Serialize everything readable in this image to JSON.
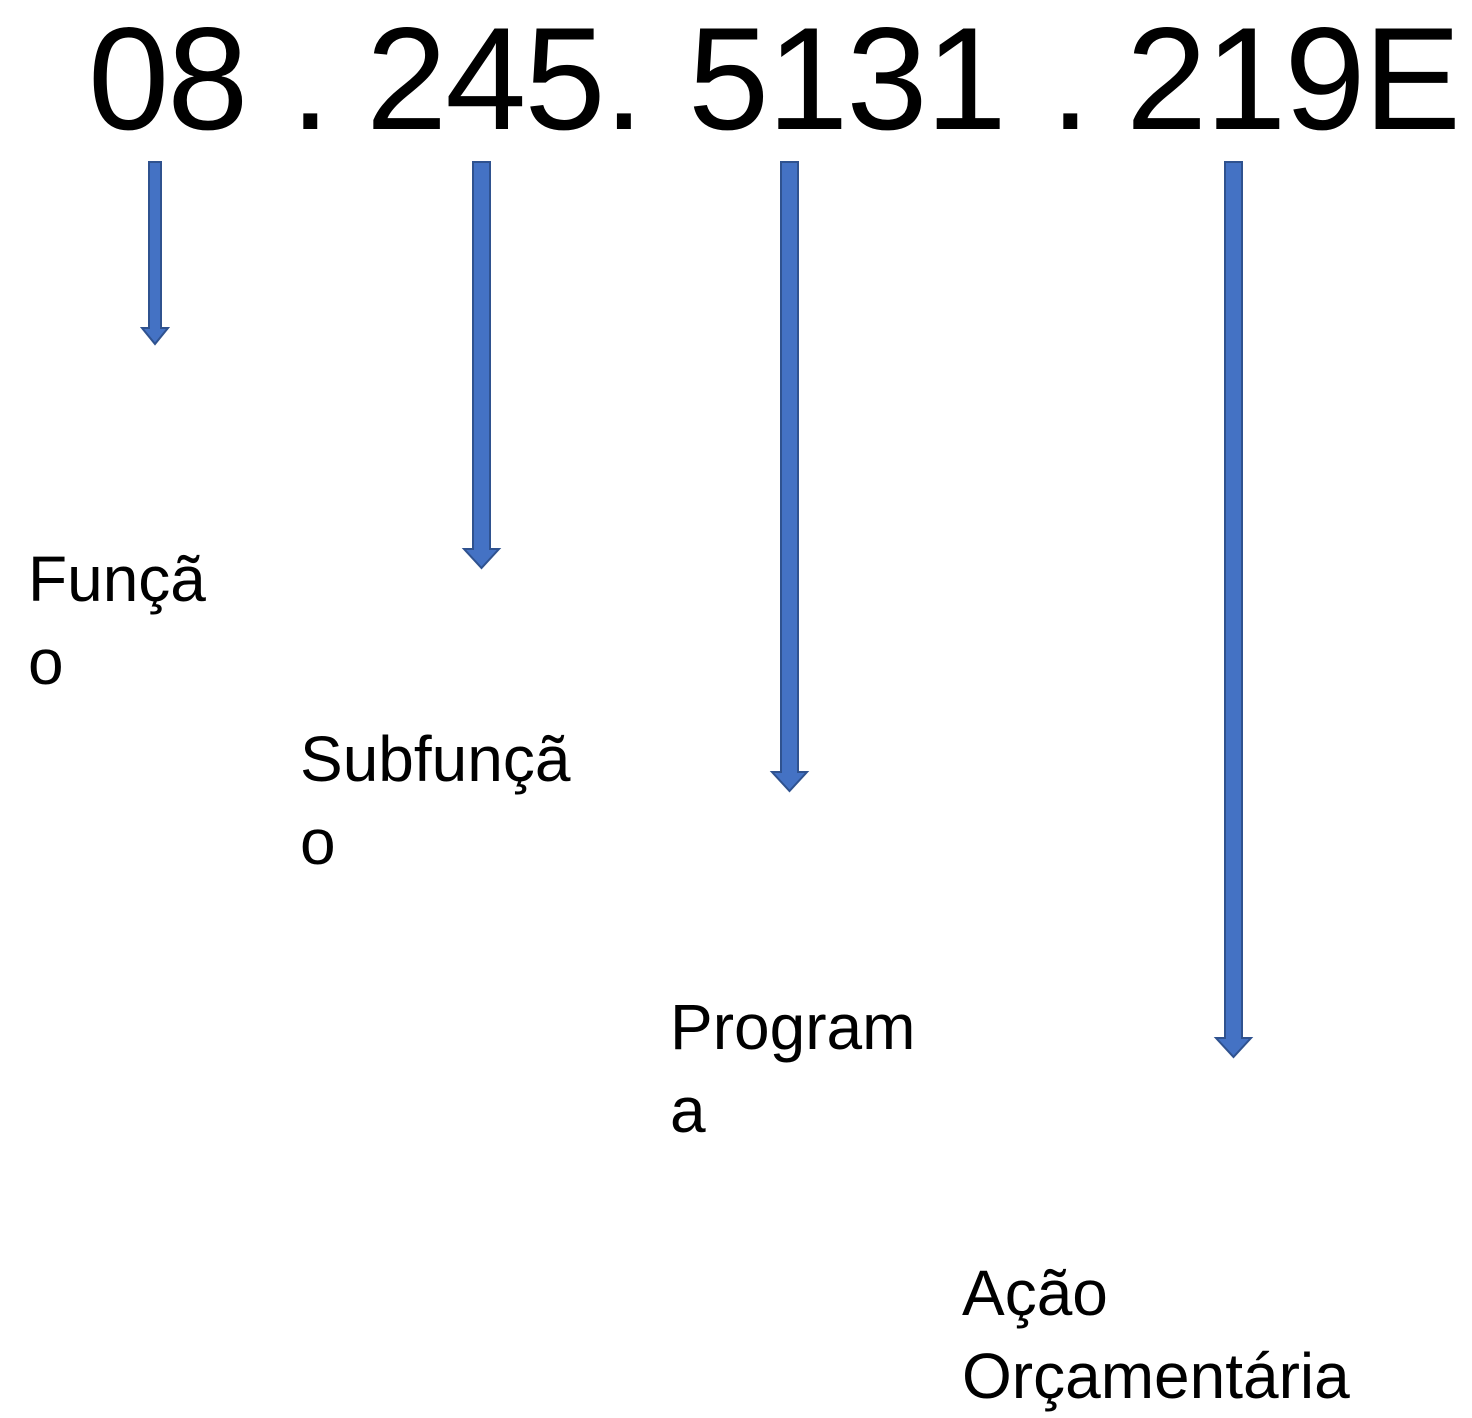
{
  "code": {
    "segments": [
      "08",
      ".",
      "245.",
      "5131",
      ".",
      "219E"
    ]
  },
  "labels": {
    "funcao": "Funçã\no",
    "subfuncao": "Subfunçã\no",
    "programa": "Program\na",
    "acao": "Ação\nOrçamentária"
  },
  "colors": {
    "arrow_fill": "#4472C4",
    "arrow_stroke": "#2F528F",
    "text": "#000000"
  }
}
